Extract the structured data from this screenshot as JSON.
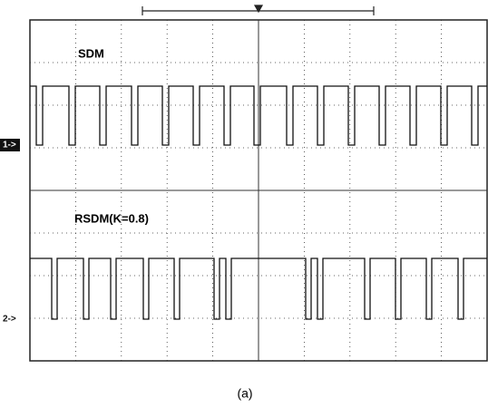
{
  "trace_labels": [
    "SDM",
    "RSDM(K=0.8)"
  ],
  "channel_markers": [
    "1->",
    "2->"
  ],
  "caption": "(a)"
}
